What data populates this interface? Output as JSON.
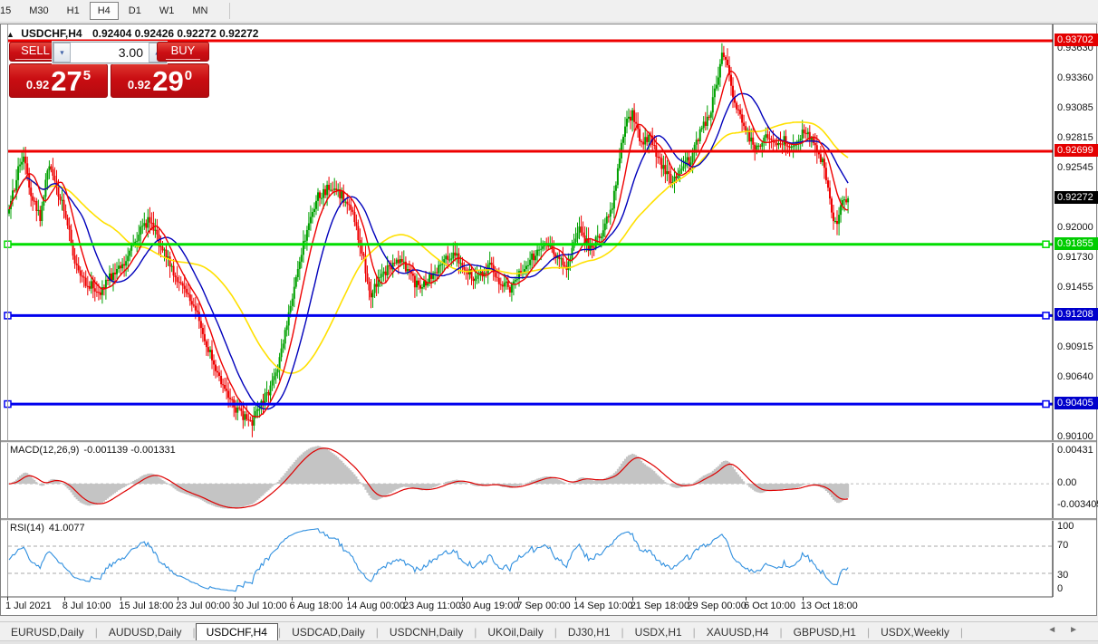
{
  "toolbar": {
    "timeframes": [
      "15",
      "M30",
      "H1",
      "H4",
      "D1",
      "W1",
      "MN"
    ],
    "active": "H4"
  },
  "window": {
    "collapse_icon": "▲",
    "symbol_timeframe": "USDCHF,H4",
    "ohlc_text": "0.92404 0.92426 0.92272 0.92272",
    "ohlc": {
      "open": "0.92404",
      "high": "0.92426",
      "low": "0.92272",
      "close": "0.92272"
    }
  },
  "trade_panel": {
    "sell_label": "SELL",
    "buy_label": "BUY",
    "volume": "3.00",
    "spin_down_icon": "▼",
    "spin_up_icon": "▲",
    "sell_price": {
      "small": "0.92",
      "big": "27",
      "sup": "5"
    },
    "buy_price": {
      "small": "0.92",
      "big": "29",
      "sup": "0"
    }
  },
  "macd": {
    "label": "MACD(12,26,9)",
    "values": "-0.001139 -0.001331",
    "axis": [
      "0.00431",
      "0.00",
      "-0.003405"
    ]
  },
  "rsi": {
    "label": "RSI(14)",
    "value": "41.0077",
    "axis": [
      "100",
      "70",
      "30",
      "0"
    ]
  },
  "tabs": {
    "items": [
      "EURUSD,Daily",
      "AUDUSD,Daily",
      "USDCHF,H4",
      "USDCAD,Daily",
      "USDCNH,Daily",
      "UKOil,Daily",
      "DJ30,H1",
      "USDX,H1",
      "XAUUSD,H4",
      "GBPUSD,H1",
      "USDX,Weekly"
    ],
    "active": "USDCHF,H4",
    "nav_left": "◄",
    "nav_right": "►"
  },
  "chart_data": {
    "type": "candlestick",
    "symbol": "USDCHF",
    "timeframe": "H4",
    "bar_count": 460,
    "data_width_frac": 0.805,
    "y_ticks": [
      0.9363,
      0.9336,
      0.93085,
      0.92815,
      0.92545,
      0.92,
      0.9173,
      0.91455,
      0.90915,
      0.9064,
      0.901
    ],
    "current_price": {
      "value": "0.92272",
      "price": 0.92272,
      "bg": "#000000"
    },
    "levels": [
      {
        "price": 0.93702,
        "label": "0.93702",
        "color": "#ee0000",
        "badge": "#e40000",
        "handles": false
      },
      {
        "price": 0.92699,
        "label": "0.92699",
        "color": "#ee0000",
        "badge": "#e40000",
        "handles": false
      },
      {
        "price": 0.91855,
        "label": "0.91855",
        "color": "#00dd00",
        "badge": "#00cc00",
        "handles": true
      },
      {
        "price": 0.91208,
        "label": "0.91208",
        "color": "#0000ee",
        "badge": "#0000cc",
        "handles": true
      },
      {
        "price": 0.90405,
        "label": "0.90405",
        "color": "#0000ee",
        "badge": "#0000cc",
        "handles": true
      }
    ],
    "ma_colors": {
      "fast": "#ee0000",
      "mid": "#0000bb",
      "slow": "#ffe000"
    },
    "candle_up_color": "#00a000",
    "candle_down_color": "#ee0000",
    "macd_hist_color": "#c4c4c4",
    "macd_signal_color": "#dd0000",
    "rsi_line_color": "#2f8fdf",
    "macd_range": {
      "max": 0.00431,
      "min": -0.003405
    },
    "rsi_guides": [
      70,
      30
    ],
    "price_path": [
      [
        0.0,
        0.9215
      ],
      [
        0.011,
        0.9255
      ],
      [
        0.018,
        0.9262
      ],
      [
        0.027,
        0.9228
      ],
      [
        0.037,
        0.921
      ],
      [
        0.047,
        0.9255
      ],
      [
        0.058,
        0.9235
      ],
      [
        0.067,
        0.9215
      ],
      [
        0.078,
        0.917
      ],
      [
        0.091,
        0.9152
      ],
      [
        0.108,
        0.9142
      ],
      [
        0.123,
        0.9158
      ],
      [
        0.14,
        0.9172
      ],
      [
        0.155,
        0.9195
      ],
      [
        0.166,
        0.9208
      ],
      [
        0.177,
        0.919
      ],
      [
        0.191,
        0.9168
      ],
      [
        0.205,
        0.9147
      ],
      [
        0.22,
        0.913
      ],
      [
        0.234,
        0.9098
      ],
      [
        0.248,
        0.9068
      ],
      [
        0.263,
        0.9044
      ],
      [
        0.277,
        0.903
      ],
      [
        0.288,
        0.9022
      ],
      [
        0.302,
        0.9042
      ],
      [
        0.313,
        0.9058
      ],
      [
        0.324,
        0.9085
      ],
      [
        0.334,
        0.9122
      ],
      [
        0.345,
        0.9165
      ],
      [
        0.356,
        0.9202
      ],
      [
        0.367,
        0.9228
      ],
      [
        0.38,
        0.9236
      ],
      [
        0.396,
        0.923
      ],
      [
        0.41,
        0.9212
      ],
      [
        0.423,
        0.917
      ],
      [
        0.431,
        0.914
      ],
      [
        0.442,
        0.9155
      ],
      [
        0.455,
        0.9165
      ],
      [
        0.468,
        0.9172
      ],
      [
        0.479,
        0.9155
      ],
      [
        0.49,
        0.9144
      ],
      [
        0.504,
        0.9158
      ],
      [
        0.518,
        0.917
      ],
      [
        0.531,
        0.9178
      ],
      [
        0.544,
        0.9164
      ],
      [
        0.557,
        0.9152
      ],
      [
        0.572,
        0.9166
      ],
      [
        0.585,
        0.9152
      ],
      [
        0.598,
        0.9145
      ],
      [
        0.612,
        0.9162
      ],
      [
        0.626,
        0.9176
      ],
      [
        0.639,
        0.9188
      ],
      [
        0.652,
        0.9176
      ],
      [
        0.664,
        0.9163
      ],
      [
        0.68,
        0.9198
      ],
      [
        0.692,
        0.9182
      ],
      [
        0.705,
        0.9194
      ],
      [
        0.719,
        0.9222
      ],
      [
        0.733,
        0.929
      ],
      [
        0.743,
        0.9305
      ],
      [
        0.754,
        0.9276
      ],
      [
        0.765,
        0.9284
      ],
      [
        0.777,
        0.9256
      ],
      [
        0.79,
        0.9243
      ],
      [
        0.802,
        0.9255
      ],
      [
        0.813,
        0.9264
      ],
      [
        0.824,
        0.9288
      ],
      [
        0.835,
        0.9302
      ],
      [
        0.846,
        0.934
      ],
      [
        0.851,
        0.9363
      ],
      [
        0.856,
        0.9345
      ],
      [
        0.862,
        0.9322
      ],
      [
        0.872,
        0.93
      ],
      [
        0.882,
        0.9282
      ],
      [
        0.893,
        0.9272
      ],
      [
        0.904,
        0.9285
      ],
      [
        0.915,
        0.9276
      ],
      [
        0.925,
        0.928
      ],
      [
        0.936,
        0.9272
      ],
      [
        0.947,
        0.929
      ],
      [
        0.958,
        0.9277
      ],
      [
        0.969,
        0.9262
      ],
      [
        0.979,
        0.9222
      ],
      [
        0.986,
        0.92
      ],
      [
        0.992,
        0.9222
      ],
      [
        1.0,
        0.92272
      ]
    ],
    "x_labels": [
      "1 Jul 2021",
      "8 Jul 10:00",
      "15 Jul 18:00",
      "23 Jul 00:00",
      "30 Jul 10:00",
      "6 Aug 18:00",
      "14 Aug 00:00",
      "23 Aug 11:00",
      "30 Aug 19:00",
      "7 Sep 00:00",
      "14 Sep 10:00",
      "21 Sep 18:00",
      "29 Sep 00:00",
      "6 Oct 10:00",
      "13 Oct 18:00"
    ]
  }
}
